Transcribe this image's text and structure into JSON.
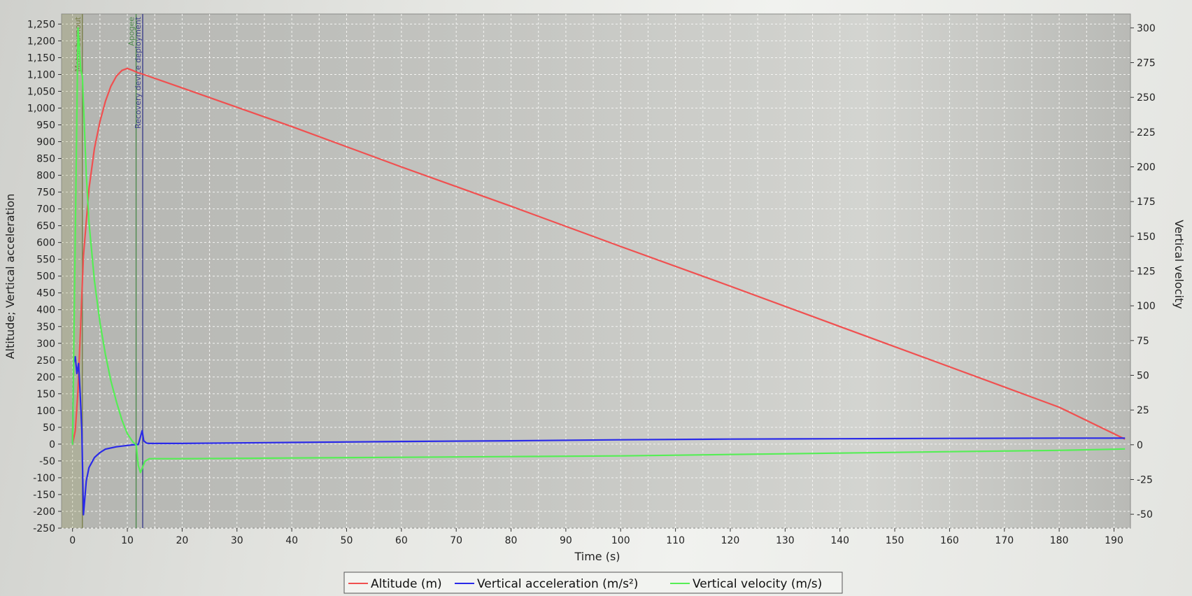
{
  "chart_data": {
    "type": "line",
    "title": "",
    "xlabel": "Time (s)",
    "ylabel_left": "Altitude; Vertical acceleration",
    "ylabel_right": "Vertical velocity",
    "xlim": [
      -2,
      193
    ],
    "ylim_left": [
      -250,
      1280
    ],
    "ylim_right": [
      -60,
      310
    ],
    "grid": true,
    "legend_position": "bottom-center",
    "x_ticks": [
      "0",
      "10",
      "20",
      "30",
      "40",
      "50",
      "60",
      "70",
      "80",
      "90",
      "100",
      "110",
      "120",
      "130",
      "140",
      "150",
      "160",
      "170",
      "180",
      "190"
    ],
    "y_left_ticks": [
      "-250",
      "-200",
      "-150",
      "-100",
      "-50",
      "0",
      "50",
      "100",
      "150",
      "200",
      "250",
      "300",
      "350",
      "400",
      "450",
      "500",
      "550",
      "600",
      "650",
      "700",
      "750",
      "800",
      "850",
      "900",
      "950",
      "1,000",
      "1,050",
      "1,100",
      "1,150",
      "1,200",
      "1,250"
    ],
    "y_right_ticks": [
      "-50",
      "-25",
      "0",
      "25",
      "50",
      "75",
      "100",
      "125",
      "150",
      "175",
      "200",
      "225",
      "250",
      "275",
      "300"
    ],
    "events": [
      {
        "label": "Motor burnout",
        "x": 1.8,
        "color": "#7a7f4a"
      },
      {
        "label": "Apogee",
        "x": 11.6,
        "color": "#4f8a4f"
      },
      {
        "label": "Recovery device deployment",
        "x": 12.8,
        "color": "#3d3f8a"
      }
    ],
    "series": [
      {
        "name": "Altitude (m)",
        "axis": "left",
        "color": "#f05050",
        "x": [
          0,
          0.5,
          1,
          1.5,
          2,
          3,
          4,
          5,
          6,
          7,
          8,
          9,
          10,
          11,
          12,
          13,
          20,
          40,
          60,
          80,
          100,
          120,
          140,
          160,
          180,
          192
        ],
        "y": [
          0,
          40,
          160,
          360,
          560,
          760,
          880,
          960,
          1020,
          1065,
          1095,
          1112,
          1118,
          1112,
          1105,
          1100,
          1060,
          945,
          825,
          708,
          588,
          470,
          350,
          230,
          110,
          15
        ]
      },
      {
        "name": "Vertical acceleration (m/s²)",
        "axis": "left",
        "color": "#2a2ae8",
        "x": [
          0,
          0.2,
          0.5,
          0.8,
          1.1,
          1.4,
          1.7,
          2.0,
          2.2,
          2.5,
          3,
          4,
          5,
          6,
          8,
          10,
          11,
          12,
          12.7,
          13,
          13.5,
          14,
          20,
          40,
          60,
          80,
          100,
          120,
          140,
          160,
          180,
          192
        ],
        "y": [
          0,
          240,
          260,
          210,
          240,
          150,
          40,
          -210,
          -170,
          -110,
          -70,
          -40,
          -25,
          -15,
          -8,
          -4,
          -2,
          -1,
          40,
          10,
          3,
          2,
          2,
          5,
          8,
          10,
          13,
          15,
          16,
          17,
          18,
          18
        ]
      },
      {
        "name": "Vertical velocity (m/s)",
        "axis": "right",
        "color": "#55ee55",
        "x": [
          0,
          0.5,
          1,
          1.5,
          1.8,
          2.5,
          3,
          4,
          5,
          6,
          7,
          8,
          9,
          10,
          11,
          11.6,
          12,
          12.4,
          12.8,
          13.2,
          14,
          20,
          40,
          60,
          80,
          100,
          120,
          140,
          160,
          180,
          192
        ],
        "y": [
          0,
          150,
          300,
          270,
          265,
          195,
          160,
          118,
          88,
          65,
          46,
          31,
          18,
          8,
          2,
          0,
          -15,
          -20,
          -16,
          -12,
          -10,
          -10,
          -9.5,
          -9,
          -8.5,
          -8,
          -7,
          -6,
          -5,
          -4,
          -3
        ]
      }
    ]
  }
}
